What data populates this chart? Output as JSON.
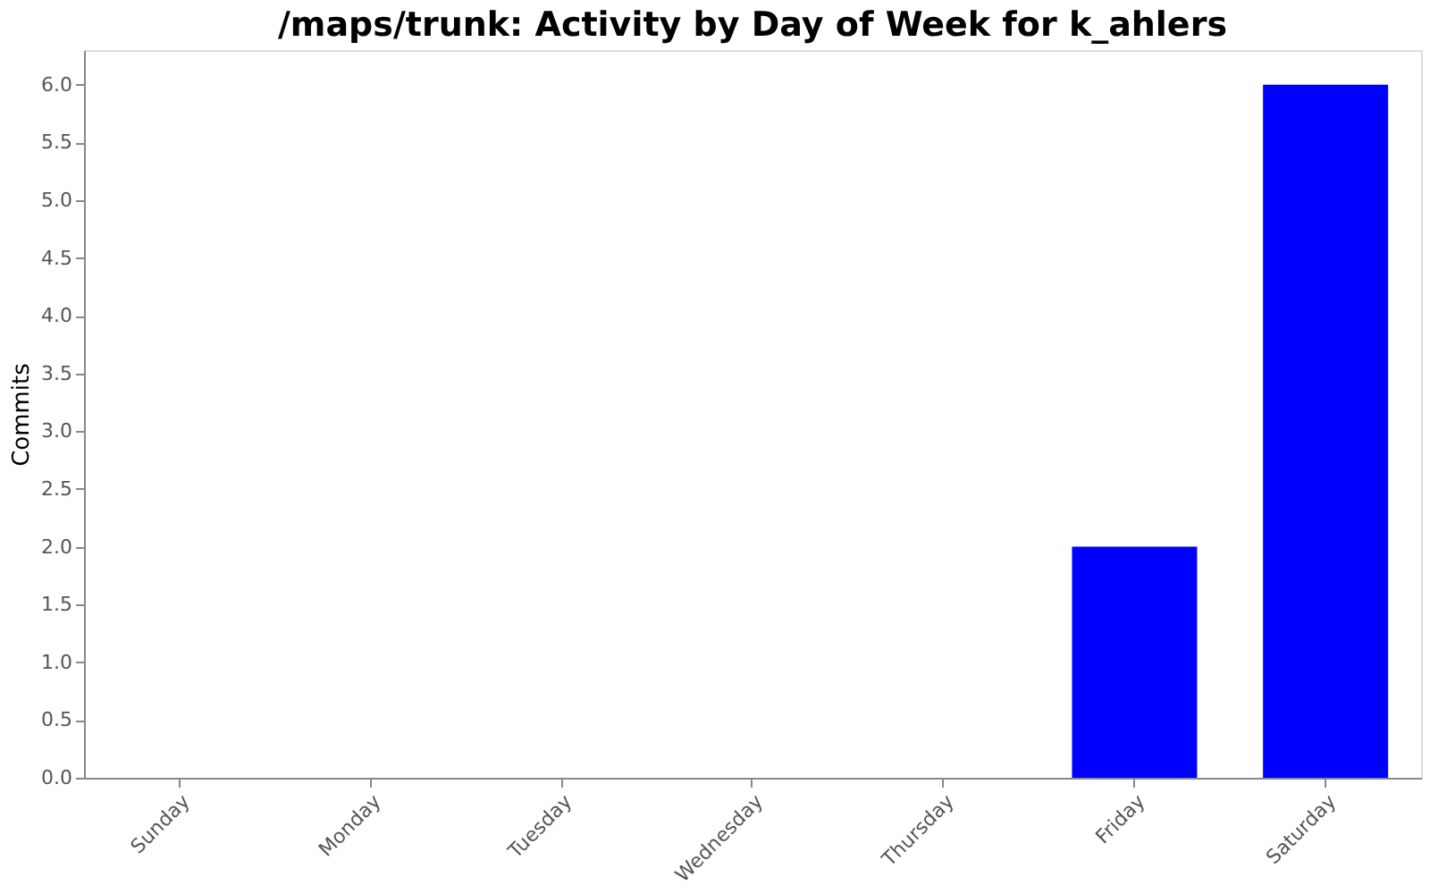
{
  "chart_data": {
    "type": "bar",
    "title": "/maps/trunk: Activity by Day of Week for k_ahlers",
    "ylabel": "Commits",
    "categories": [
      "Sunday",
      "Monday",
      "Tuesday",
      "Wednesday",
      "Thursday",
      "Friday",
      "Saturday"
    ],
    "values": [
      0,
      0,
      0,
      0,
      0,
      2,
      6
    ],
    "color": "#0000ff",
    "ylim": [
      0,
      6.3
    ],
    "yticks": [
      {
        "value": 0,
        "label": "0.0"
      },
      {
        "value": 0.5,
        "label": "0.5"
      },
      {
        "value": 1,
        "label": "1.0"
      },
      {
        "value": 1.5,
        "label": "1.5"
      },
      {
        "value": 2,
        "label": "2.0"
      },
      {
        "value": 2.5,
        "label": "2.5"
      },
      {
        "value": 3,
        "label": "3.0"
      },
      {
        "value": 3.5,
        "label": "3.5"
      },
      {
        "value": 4,
        "label": "4.0"
      },
      {
        "value": 4.5,
        "label": "4.5"
      },
      {
        "value": 5,
        "label": "5.0"
      },
      {
        "value": 5.5,
        "label": "5.5"
      },
      {
        "value": 6,
        "label": "6.0"
      }
    ],
    "grid": false
  }
}
